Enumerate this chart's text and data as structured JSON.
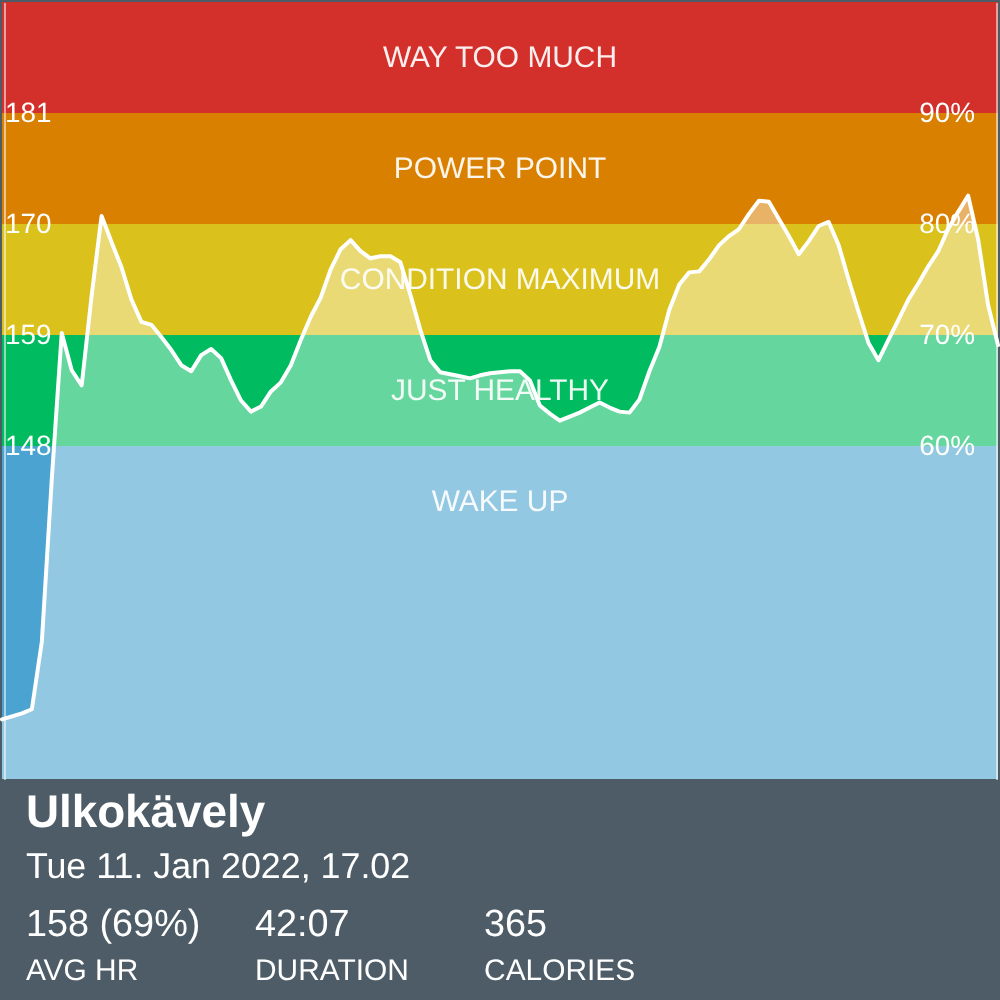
{
  "chart_data": {
    "type": "area",
    "title": "Ulkokävely",
    "subtitle": "Tue 11. Jan 2022, 17.02",
    "annotations": [
      "158 (69%)",
      "AVG HR",
      "42:07",
      "DURATION",
      "365",
      "CALORIES"
    ],
    "categories": [
      null,
      null,
      null,
      null,
      null,
      null,
      null,
      null,
      null,
      null,
      null,
      null,
      null,
      null,
      null,
      null,
      null,
      null,
      null,
      null,
      null,
      null,
      null,
      null,
      null,
      null,
      null,
      null,
      null,
      null,
      null,
      null,
      null,
      null,
      null,
      null,
      null,
      null,
      null,
      null,
      null,
      null,
      null,
      null,
      null,
      null,
      null,
      null,
      null,
      null,
      null,
      null,
      null,
      null,
      null,
      null,
      null,
      null,
      null,
      null,
      null,
      null,
      null,
      null,
      null,
      null,
      null,
      null,
      null,
      null,
      null,
      null,
      null,
      null,
      null,
      null,
      null,
      null,
      null,
      null,
      null,
      null,
      null,
      null,
      null,
      null,
      null,
      null,
      null,
      null,
      null,
      null,
      null,
      null,
      null,
      null,
      null,
      null,
      null,
      null,
      null
    ],
    "series": [
      {
        "color": "#ffffff",
        "values": [
          120.9,
          121.2,
          121.5,
          121.9,
          128.6,
          144.7,
          159.2,
          155.5,
          154,
          162.9,
          170.8,
          168.2,
          165.7,
          162.5,
          160.3,
          160,
          158.8,
          157.5,
          156,
          155.4,
          157,
          157.6,
          156.7,
          154.5,
          152.5,
          151.4,
          151.9,
          153.4,
          154.3,
          156,
          158.5,
          160.8,
          162.7,
          165.5,
          167.5,
          168.4,
          167.3,
          166.6,
          166.8,
          166.8,
          166.2,
          163,
          159.5,
          156.5,
          155.3,
          155.1,
          154.9,
          154.7,
          155,
          155.2,
          155.3,
          155.4,
          155.4,
          154.5,
          152,
          151.2,
          150.5,
          150.9,
          151.3,
          151.8,
          152.3,
          151.8,
          151.4,
          151.3,
          152.6,
          155.4,
          157.8,
          161.5,
          164,
          165.2,
          165.3,
          166.5,
          167.9,
          168.8,
          169.5,
          171,
          172.3,
          172.2,
          170.5,
          168.8,
          167,
          168.3,
          169.8,
          170.2,
          167.9,
          164.5,
          161.3,
          158.2,
          156.5,
          158.5,
          160.5,
          162.5,
          164.1,
          165.8,
          167.3,
          169.5,
          171.2,
          172.8,
          168.5,
          162,
          158
        ]
      }
    ],
    "ylim": [
      115,
      192
    ],
    "yticks": [
      148,
      159,
      170,
      181
    ],
    "y2lim": [
      30,
      100
    ],
    "y2ticks": [
      {
        "value": 60,
        "label": "60%"
      },
      {
        "value": 70,
        "label": "70%"
      },
      {
        "value": 80,
        "label": "80%"
      },
      {
        "value": 90,
        "label": "90%"
      }
    ],
    "bands": [
      {
        "axis": "y",
        "from": 181,
        "to": 192,
        "label": "WAY TOO MUCH",
        "color": "#d3302b"
      },
      {
        "axis": "y",
        "from": 170,
        "to": 181,
        "label": "POWER POINT",
        "color": "#d98000"
      },
      {
        "axis": "y",
        "from": 159,
        "to": 170,
        "label": "CONDITION MAXIMUM",
        "color": "#dbc11c"
      },
      {
        "axis": "y",
        "from": 148,
        "to": 159,
        "label": "JUST HEALTHY",
        "color": "#00bb5f"
      },
      {
        "axis": "y",
        "from": 115,
        "to": 148,
        "label": "WAKE UP",
        "color": "#4ba3d1"
      }
    ],
    "grid": false,
    "tick_labels": "y"
  }
}
